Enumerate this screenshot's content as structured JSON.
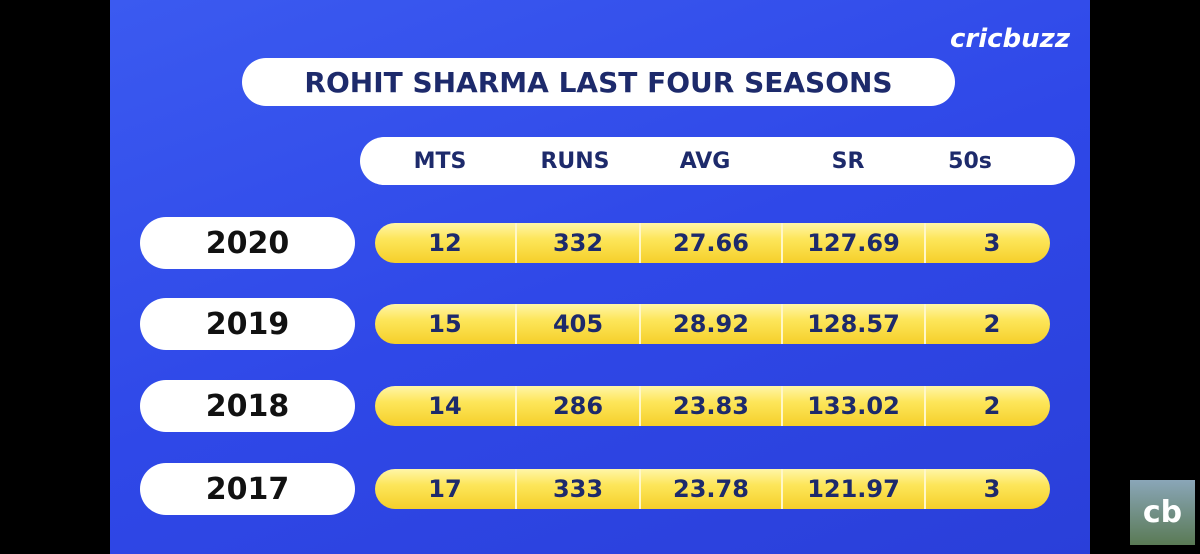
{
  "logo": "cricbuzz",
  "title": "ROHIT SHARMA LAST FOUR SEASONS",
  "table": {
    "columns": [
      "MTS",
      "RUNS",
      "AVG",
      "SR",
      "50s"
    ],
    "rows": [
      {
        "season": "2020",
        "cells": [
          "12",
          "332",
          "27.66",
          "127.69",
          "3"
        ]
      },
      {
        "season": "2019",
        "cells": [
          "15",
          "405",
          "28.92",
          "128.57",
          "2"
        ]
      },
      {
        "season": "2018",
        "cells": [
          "14",
          "286",
          "23.83",
          "133.02",
          "2"
        ]
      },
      {
        "season": "2017",
        "cells": [
          "17",
          "333",
          "23.78",
          "121.97",
          "3"
        ]
      }
    ]
  },
  "corner_icon": "cb"
}
